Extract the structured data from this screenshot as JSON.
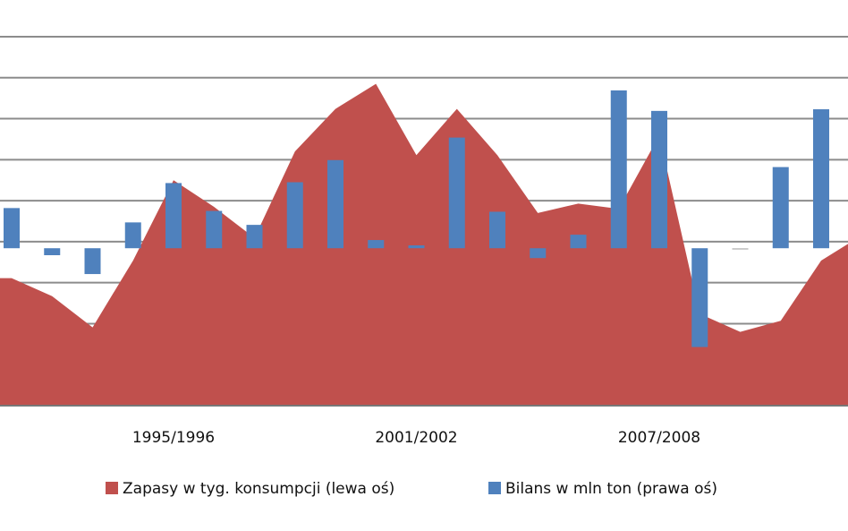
{
  "chart_data": {
    "type": "bar_area",
    "categories": [
      null,
      null,
      null,
      null,
      "1995/1996",
      null,
      null,
      null,
      null,
      null,
      "2001/2002",
      null,
      null,
      null,
      null,
      null,
      "2007/2008",
      null,
      null,
      null,
      null,
      null
    ],
    "series": [
      {
        "name": "Zapasy w tyg. konsumpcji (lewa oś)",
        "color": "#c0504d",
        "kind": "area",
        "values": [
          3.11,
          2.67,
          1.91,
          3.54,
          5.5,
          4.85,
          4.09,
          6.2,
          7.24,
          7.85,
          6.11,
          7.24,
          6.11,
          4.7,
          4.93,
          4.8,
          6.59,
          2.24,
          1.8,
          2.07,
          3.54,
          4.15
        ]
      },
      {
        "name": "Bilans w mln ton (prawa oś)",
        "color": "#4f81bd",
        "kind": "bar",
        "axis": "y2",
        "values": [
          0.98,
          -0.17,
          -0.63,
          0.63,
          1.59,
          0.91,
          0.57,
          1.61,
          2.15,
          0.2,
          0.07,
          2.7,
          0.89,
          -0.24,
          0.33,
          3.85,
          3.35,
          -2.41,
          0,
          1.98,
          3.39,
          null
        ]
      }
    ],
    "ylim": [
      0,
      9
    ],
    "yticks": [
      1,
      2,
      3,
      4,
      5,
      6,
      7,
      8,
      9
    ],
    "y2lim": [
      -3.84,
      5.16
    ],
    "grid": true
  }
}
